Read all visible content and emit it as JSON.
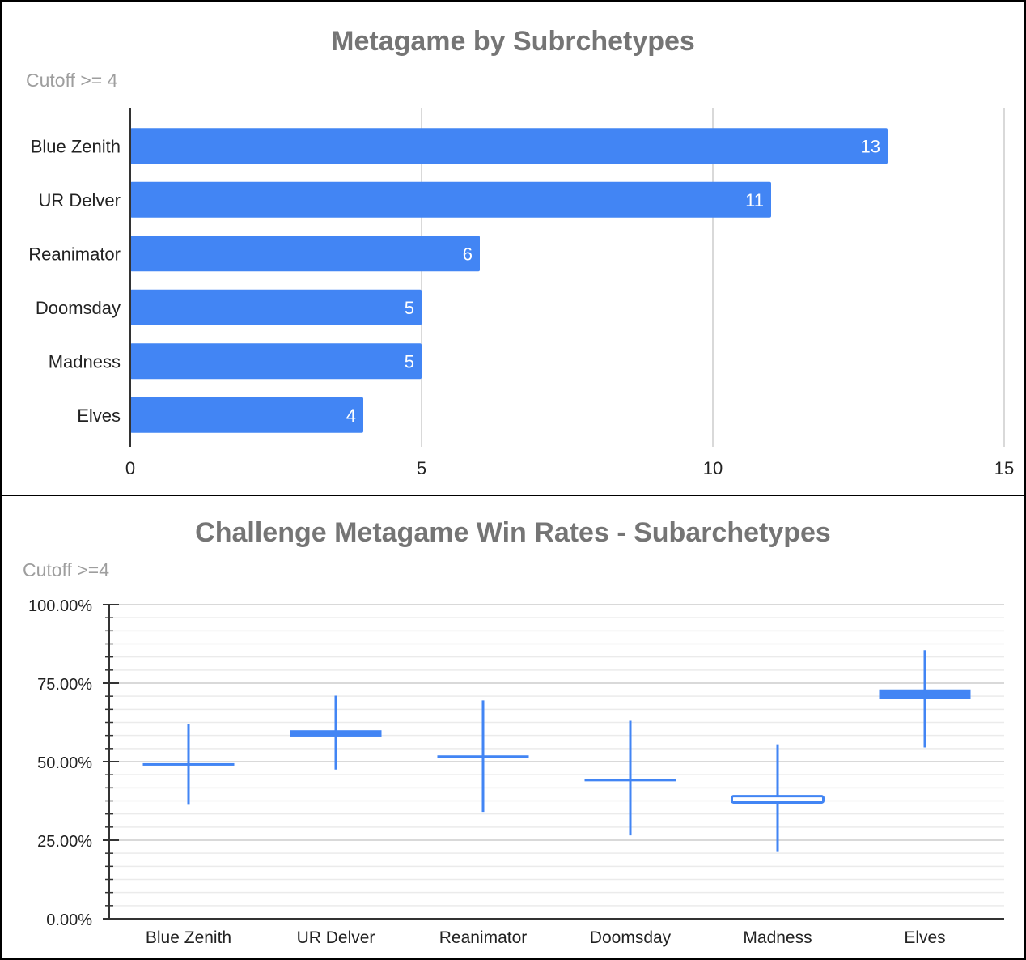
{
  "colors": {
    "series": "#4285f4",
    "grid": "#d9d9d9",
    "minor_grid": "#ebebeb",
    "axis": "#333333",
    "title": "#757575",
    "subtitle": "#9e9e9e"
  },
  "chart_data": [
    {
      "type": "bar",
      "orientation": "horizontal",
      "title": "Metagame by Subrchetypes",
      "subtitle": "Cutoff >= 4",
      "categories": [
        "Blue Zenith",
        "UR Delver",
        "Reanimator",
        "Doomsday",
        "Madness",
        "Elves"
      ],
      "values": [
        13,
        11,
        6,
        5,
        5,
        4
      ],
      "data_labels": [
        "13",
        "11",
        "6",
        "5",
        "5",
        "4"
      ],
      "xlim": [
        0,
        15
      ],
      "xticks": [
        0,
        5,
        10,
        15
      ],
      "xtick_labels": [
        "0",
        "5",
        "10",
        "15"
      ],
      "grid": true,
      "legend": "none"
    },
    {
      "type": "candlestick",
      "title": "Challenge Metagame Win Rates - Subarchetypes",
      "subtitle": "Cutoff >=4",
      "categories": [
        "Blue Zenith",
        "UR Delver",
        "Reanimator",
        "Doomsday",
        "Madness",
        "Elves"
      ],
      "low": [
        36.5,
        47.5,
        34.0,
        26.5,
        21.5,
        54.5
      ],
      "open": [
        49.5,
        60.0,
        52.0,
        44.5,
        39.0,
        70.0
      ],
      "close": [
        49.0,
        58.0,
        51.5,
        44.0,
        37.0,
        73.0
      ],
      "high": [
        62.0,
        71.0,
        69.5,
        63.0,
        55.5,
        85.5
      ],
      "hollow": [
        false,
        false,
        false,
        false,
        true,
        false
      ],
      "ylim": [
        0,
        100
      ],
      "yticks": [
        0,
        25,
        50,
        75,
        100
      ],
      "ytick_labels": [
        "0.00%",
        "25.00%",
        "50.00%",
        "75.00%",
        "100.00%"
      ],
      "grid": true,
      "legend": "none"
    }
  ]
}
